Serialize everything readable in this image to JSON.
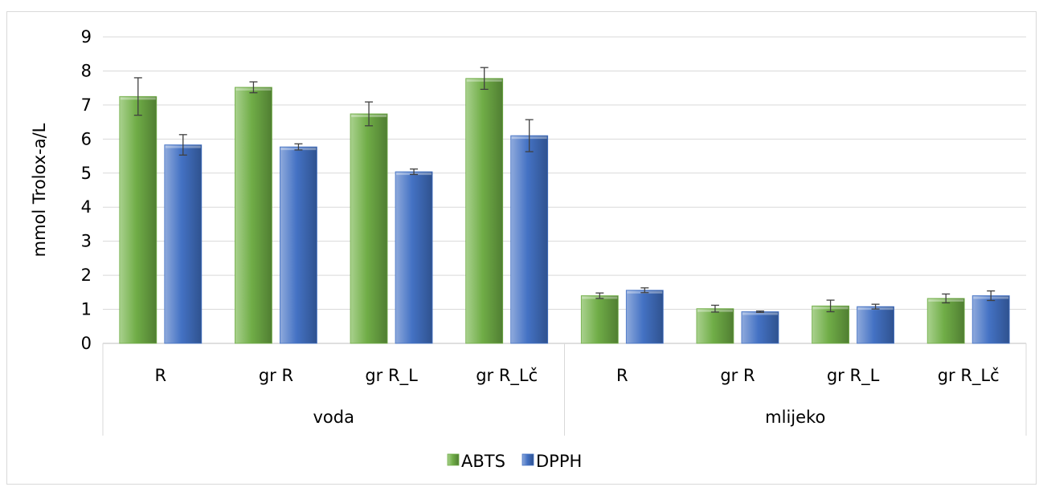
{
  "chart_data": {
    "type": "bar",
    "title": "",
    "ylabel": "mmol  Trolox-a/L",
    "xlabel": "",
    "ylim": [
      0,
      9
    ],
    "yticks": [
      0,
      1,
      2,
      3,
      4,
      5,
      6,
      7,
      8,
      9
    ],
    "grid": true,
    "legend_position": "bottom",
    "groups": [
      {
        "label": "voda",
        "categories": [
          "R",
          "gr R",
          "gr R_L",
          "gr R_Lč"
        ]
      },
      {
        "label": "mlijeko",
        "categories": [
          "R",
          "gr R",
          "gr R_L",
          "gr R_Lč"
        ]
      }
    ],
    "series": [
      {
        "name": "ABTS",
        "color": "#70ad47",
        "values": [
          7.25,
          7.52,
          6.74,
          7.78,
          1.4,
          1.02,
          1.1,
          1.32
        ],
        "errors": [
          0.55,
          0.16,
          0.35,
          0.32,
          0.08,
          0.1,
          0.17,
          0.13
        ]
      },
      {
        "name": "DPPH",
        "color": "#4472c4",
        "values": [
          5.83,
          5.77,
          5.04,
          6.1,
          1.56,
          0.93,
          1.08,
          1.4
        ],
        "errors": [
          0.3,
          0.09,
          0.08,
          0.47,
          0.07,
          0.02,
          0.07,
          0.14
        ]
      }
    ]
  }
}
